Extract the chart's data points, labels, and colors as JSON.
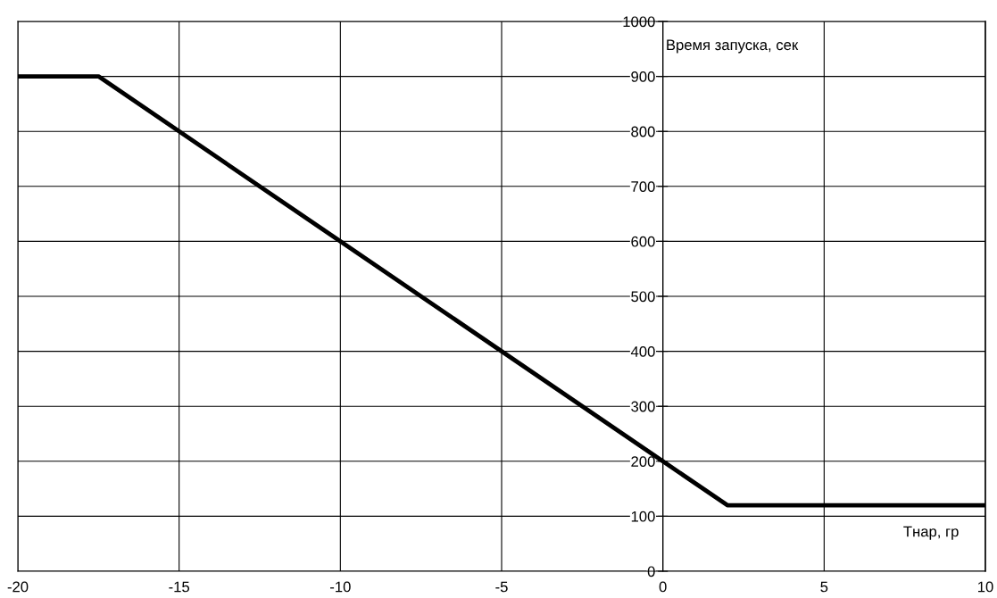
{
  "chart_data": {
    "type": "line",
    "xlabel": "Тнар, гр",
    "ylabel": "Время запуска, сек",
    "x": [
      -20,
      -17.5,
      2,
      10
    ],
    "series": [
      {
        "color": "#000000",
        "values": [
          900,
          900,
          120,
          120
        ]
      }
    ],
    "xlim": [
      -20,
      10
    ],
    "xticks": [
      -20,
      -15,
      -10,
      -5,
      0,
      5,
      10
    ],
    "ylim": [
      0,
      1000
    ],
    "yticks": [
      0,
      100,
      200,
      300,
      400,
      500,
      600,
      700,
      800,
      900,
      1000
    ],
    "grid": true,
    "marker": "none",
    "line_style": "solid",
    "legend": false
  }
}
